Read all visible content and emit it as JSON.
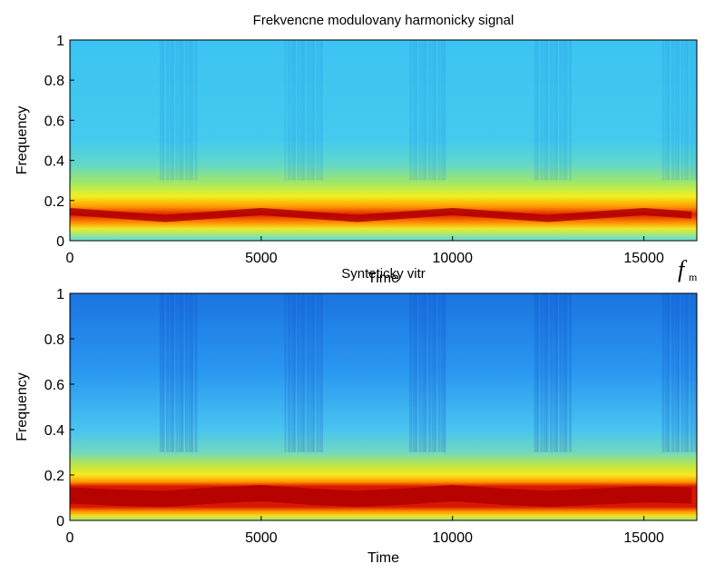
{
  "chart_data": [
    {
      "type": "spectrogram",
      "title": "Frekvencne modulovany harmonicky signal",
      "xlabel": "Time",
      "ylabel": "Frequency",
      "xlim": [
        0,
        16384
      ],
      "ylim": [
        0,
        1
      ],
      "xticks": [
        0,
        5000,
        10000,
        15000
      ],
      "yticks": [
        0,
        0.2,
        0.4,
        0.6,
        0.8,
        1
      ],
      "series": [
        {
          "color": "#b00000",
          "x": [
            0,
            1250,
            2500,
            3750,
            5000,
            6250,
            7500,
            8750,
            10000,
            11250,
            12500,
            13750,
            15000,
            16250
          ],
          "values": [
            0.145,
            0.128,
            0.111,
            0.128,
            0.145,
            0.128,
            0.111,
            0.128,
            0.145,
            0.128,
            0.111,
            0.128,
            0.145,
            0.128
          ]
        }
      ],
      "annotation": "f",
      "annotation_sub": "m"
    },
    {
      "type": "spectrogram",
      "title": "Synteticky vitr",
      "xlabel": "Time",
      "ylabel": "Frequency",
      "xlim": [
        0,
        16384
      ],
      "ylim": [
        0,
        1
      ],
      "xticks": [
        0,
        5000,
        10000,
        15000
      ],
      "yticks": [
        0,
        0.2,
        0.4,
        0.6,
        0.8,
        1
      ],
      "series": [
        {
          "color": "#b00000",
          "x": [
            0,
            1250,
            2500,
            3750,
            5000,
            6250,
            7500,
            8750,
            10000,
            11250,
            12500,
            13750,
            15000,
            16250
          ],
          "values": [
            0.11,
            0.1,
            0.095,
            0.11,
            0.12,
            0.105,
            0.095,
            0.105,
            0.12,
            0.105,
            0.095,
            0.105,
            0.115,
            0.11
          ]
        }
      ]
    }
  ]
}
